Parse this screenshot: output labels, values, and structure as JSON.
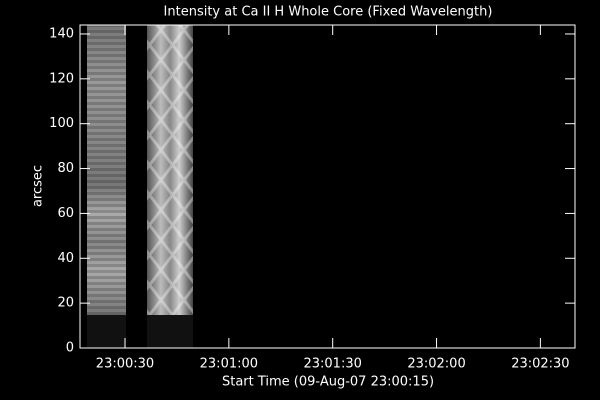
{
  "chart_data": {
    "type": "image",
    "title": "Intensity at Ca II H Whole Core (Fixed Wavelength)",
    "xlabel": "Start Time (09-Aug-07 23:00:15)",
    "ylabel": "arcsec",
    "xlim": [
      17,
      160
    ],
    "xticks": [
      {
        "value": 30,
        "label": "23:00:30"
      },
      {
        "value": 60,
        "label": "23:01:00"
      },
      {
        "value": 90,
        "label": "23:01:30"
      },
      {
        "value": 120,
        "label": "23:02:00"
      },
      {
        "value": 150,
        "label": "23:02:30"
      }
    ],
    "ylim": [
      0,
      144
    ],
    "yticks": [
      0,
      20,
      40,
      60,
      80,
      100,
      120,
      140
    ]
  }
}
